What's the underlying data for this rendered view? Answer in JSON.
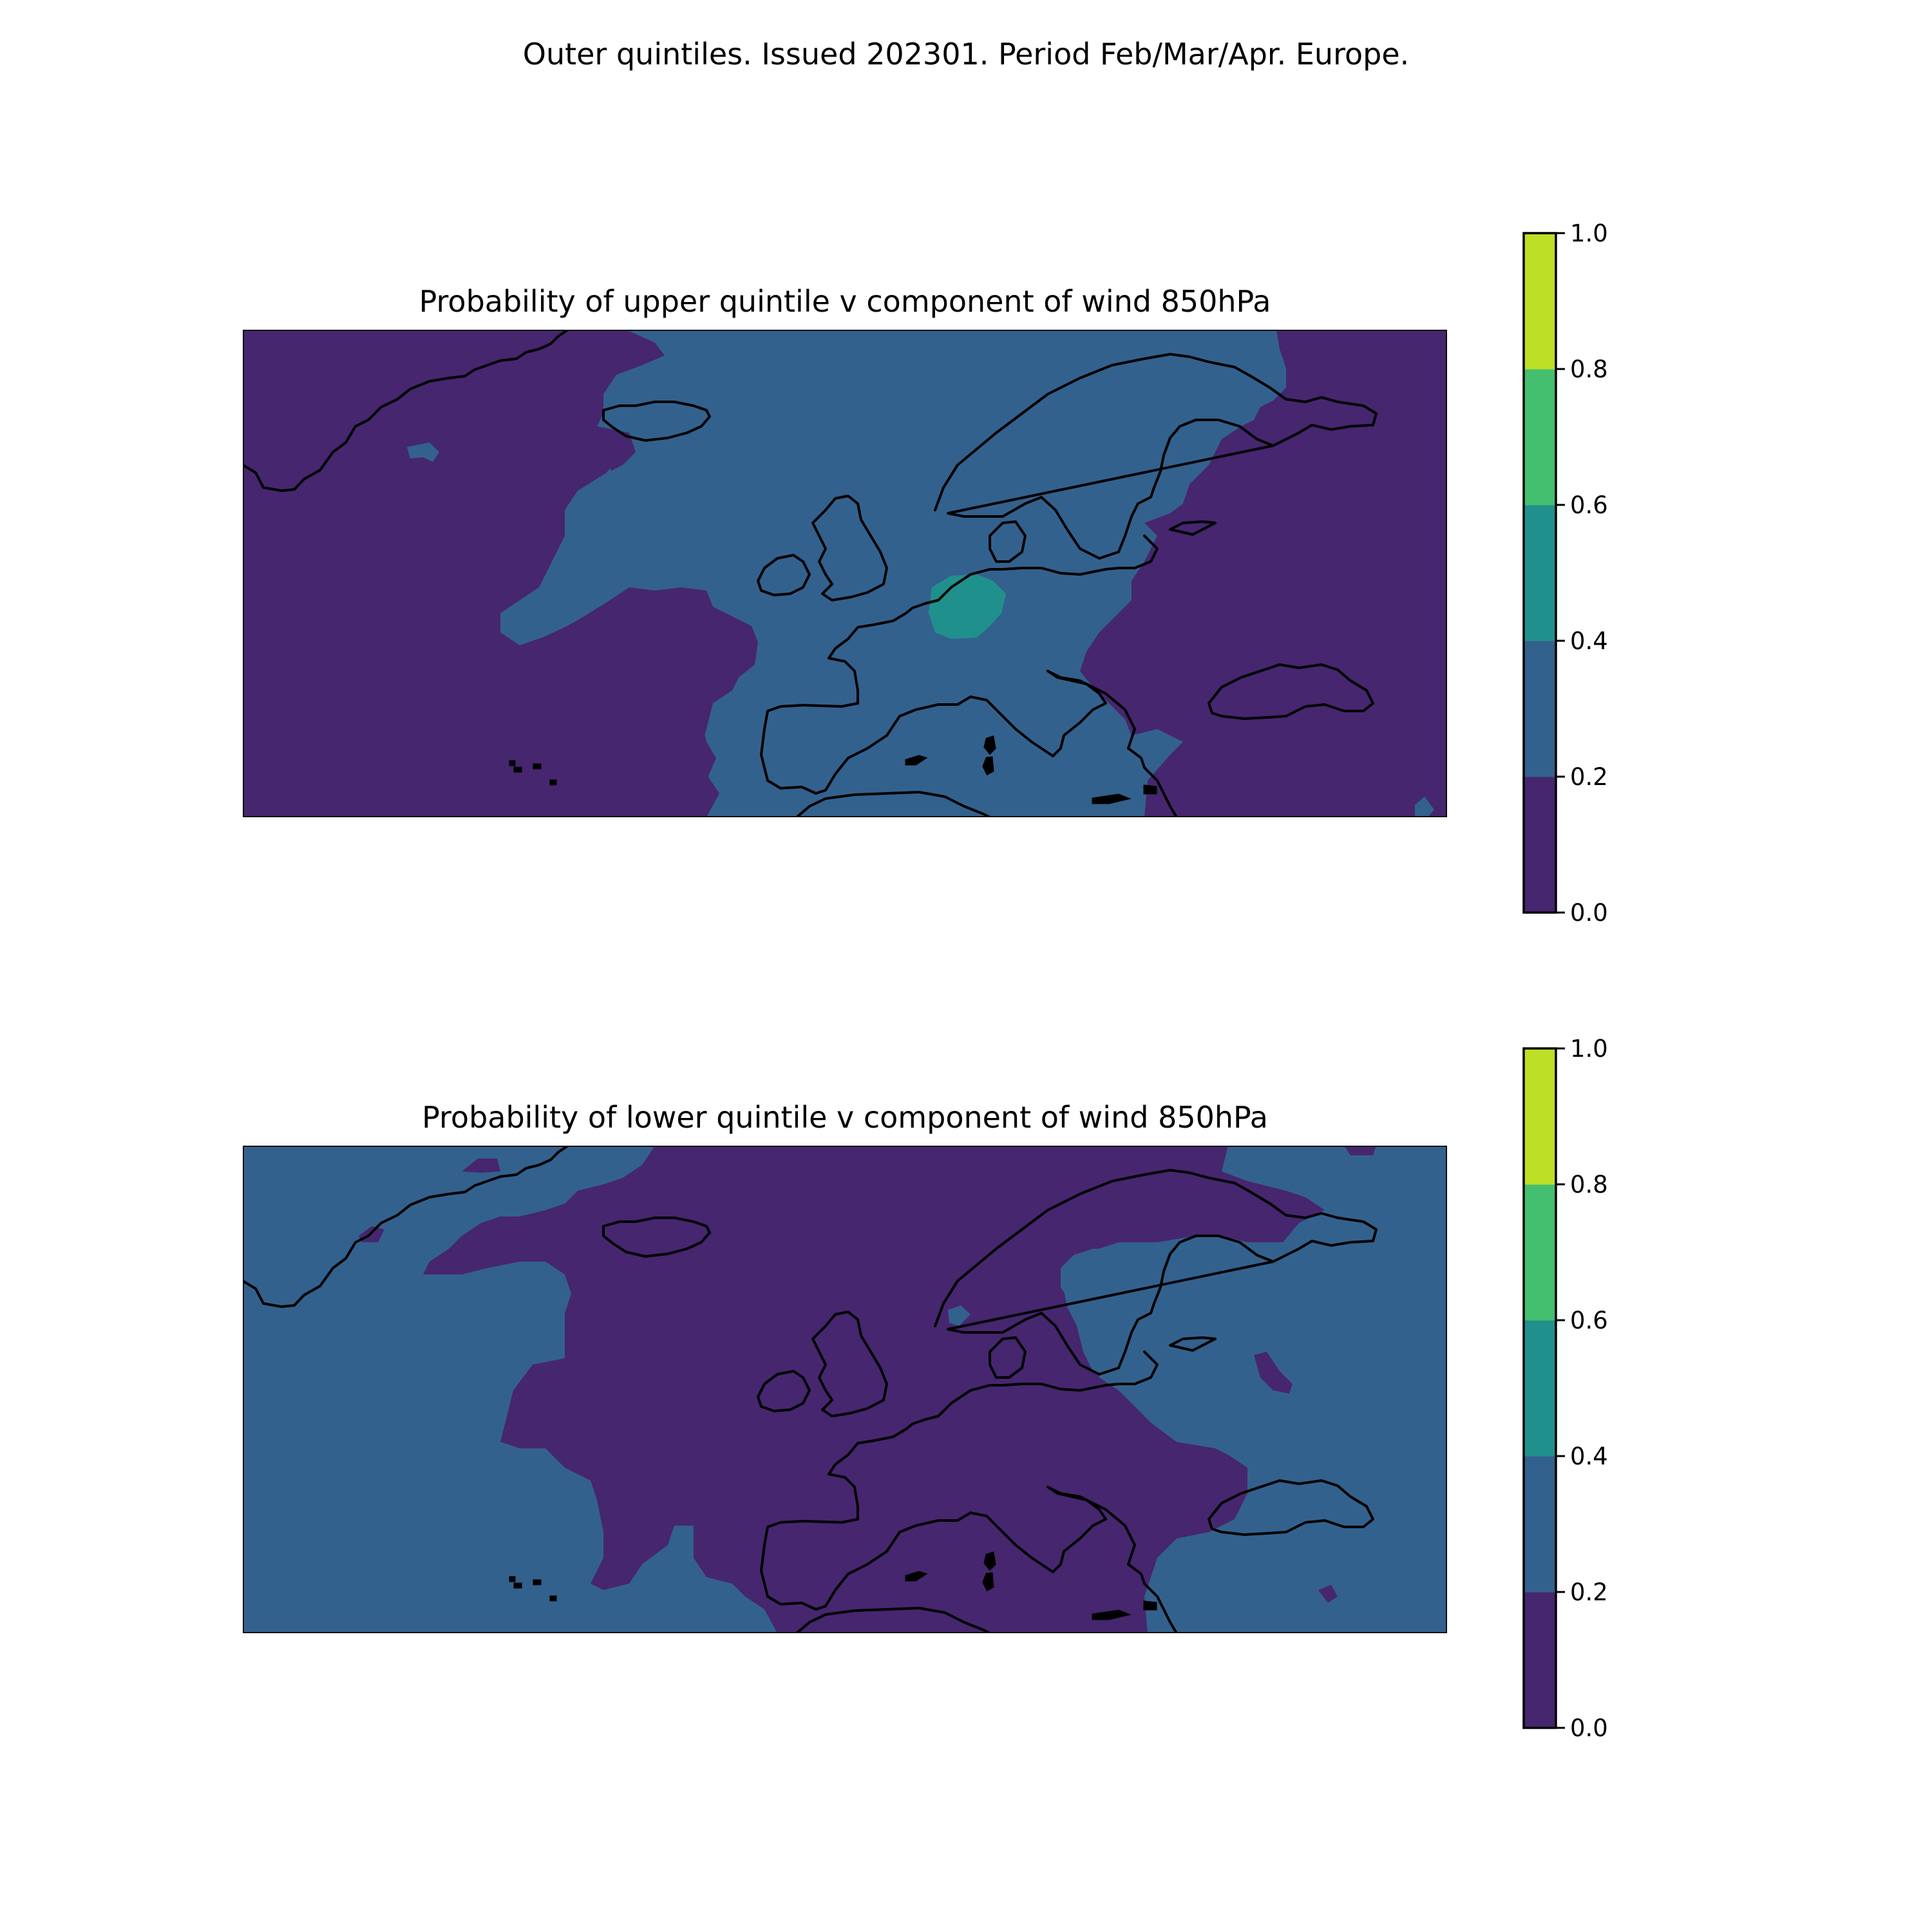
{
  "title": "Outer quintiles. Issued 202301. Period Feb/Mar/Apr. Europe.",
  "colorbar": {
    "ticks": [
      "0.0",
      "0.2",
      "0.4",
      "0.6",
      "0.8",
      "1.0"
    ],
    "levels": [
      0.0,
      0.2,
      0.4,
      0.6,
      0.8,
      1.0
    ],
    "colors": [
      "#46266f",
      "#33618d",
      "#20908c",
      "#44bf70",
      "#bddf26"
    ]
  },
  "panels": [
    {
      "title": "Probability of upper quintile v component of wind 850hPa",
      "background_class": "0.0-0.2",
      "regions": [
        {
          "class": "0.2-0.4",
          "area": "North Atlantic, Iceland, Scandinavia, western and central Europe, Mediterranean"
        },
        {
          "class": "0.4-0.6",
          "area": "Netherlands / northern Germany"
        },
        {
          "class": "0.0-0.2",
          "area": "Greenland, western Atlantic, Bay of Biscay tongue, eastern Europe, Black Sea"
        }
      ]
    },
    {
      "title": "Probability of lower quintile v component of wind 850hPa",
      "background_class": "0.2-0.4",
      "regions": [
        {
          "class": "0.0-0.2",
          "area": "central North Atlantic, British Isles, western and central Europe, Mediterranean, northern Scandinavia"
        },
        {
          "class": "0.2-0.4",
          "area": "Greenland, western Atlantic, Baltic, eastern Europe, Black Sea"
        }
      ]
    }
  ]
}
